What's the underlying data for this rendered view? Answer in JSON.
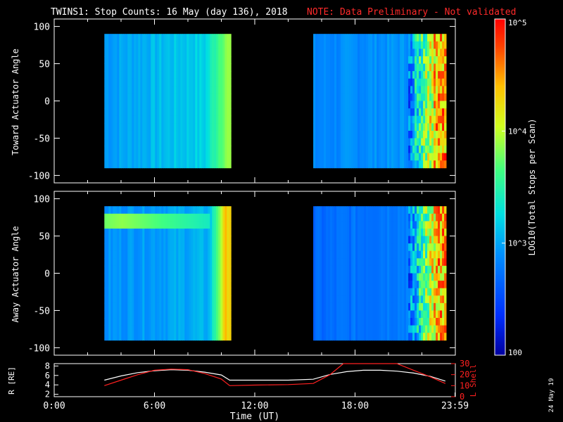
{
  "title": {
    "main": "TWINS1: Stop Counts: 16 May (day 136), 2018",
    "note": "NOTE: Data Preliminary - Not validated",
    "main_color": "#ffffff",
    "note_color": "#ff2a2a"
  },
  "stamp": "24 May 19",
  "chart_data": [
    {
      "type": "heatmap",
      "ylabel": "Toward Actuator Angle",
      "ylim": [
        -110,
        110
      ],
      "yticks": [
        100,
        50,
        0,
        -50,
        -100
      ],
      "xlim": [
        0,
        24
      ],
      "data_extent_y": [
        -90,
        90
      ],
      "segments": [
        {
          "start": 3.0,
          "end": 10.5,
          "level_start": 0.32,
          "level_end": 0.42,
          "ramp_start": 9.0,
          "ramp_end": 10.5,
          "ramp_level": 0.62
        },
        {
          "start": 15.5,
          "end": 23.4,
          "level_start": 0.28,
          "level_end": 0.32,
          "ramp_start": 21.1,
          "ramp_end": 23.4,
          "ramp_level": 0.9,
          "noisy_from": 21.1
        }
      ]
    },
    {
      "type": "heatmap",
      "ylabel": "Away Actuator Angle",
      "ylim": [
        -110,
        110
      ],
      "yticks": [
        100,
        50,
        0,
        -50,
        -100
      ],
      "xlim": [
        0,
        24
      ],
      "data_extent_y": [
        -90,
        90
      ],
      "bright_band": {
        "y": 72,
        "level": 0.62
      },
      "segments": [
        {
          "start": 3.0,
          "end": 10.5,
          "level_start": 0.3,
          "level_end": 0.36,
          "ramp_start": 9.2,
          "ramp_end": 10.5,
          "ramp_level": 0.78
        },
        {
          "start": 15.5,
          "end": 23.4,
          "level_start": 0.22,
          "level_end": 0.3,
          "ramp_start": 21.1,
          "ramp_end": 23.4,
          "ramp_level": 0.88,
          "noisy_from": 21.1
        }
      ]
    },
    {
      "type": "line",
      "xlabel": "Time (UT)",
      "xticks": [
        "0:00",
        "6:00",
        "12:00",
        "18:00",
        "23:59"
      ],
      "xtick_hours": [
        0,
        6,
        12,
        18,
        23.98
      ],
      "xlim": [
        0,
        24
      ],
      "left_axis": {
        "label": "R [RE]",
        "ylim": [
          1.5,
          8.5
        ],
        "yticks": [
          2,
          4,
          6,
          8
        ],
        "color": "#ffffff"
      },
      "right_axis": {
        "label": "L Shell",
        "ylim": [
          0,
          30
        ],
        "yticks": [
          0,
          10,
          20,
          30
        ],
        "color": "#ff2020"
      },
      "series": [
        {
          "axis": "left",
          "color": "#ffffff",
          "x": [
            3.0,
            4.0,
            5.0,
            6.0,
            7.0,
            8.0,
            9.0,
            10.0,
            10.5,
            12.0,
            14.0,
            15.5,
            16.5,
            17.5,
            18.5,
            19.5,
            20.5,
            21.5,
            22.5,
            23.4
          ],
          "y": [
            5.0,
            5.9,
            6.6,
            7.0,
            7.2,
            7.1,
            6.7,
            6.1,
            5.0,
            5.0,
            5.0,
            5.2,
            6.2,
            6.8,
            7.1,
            7.1,
            6.9,
            6.5,
            5.8,
            4.8
          ]
        },
        {
          "axis": "right",
          "color": "#ff2020",
          "x": [
            3.0,
            4.0,
            5.0,
            6.0,
            7.0,
            8.0,
            9.0,
            10.0,
            10.5,
            12.0,
            14.0,
            15.5,
            16.5,
            17.3,
            20.5,
            21.5,
            22.5,
            23.4
          ],
          "y": [
            10.0,
            15.0,
            20.0,
            24.0,
            25.0,
            24.5,
            21.0,
            16.0,
            10.0,
            10.5,
            11.0,
            12.0,
            20.0,
            30.0,
            30.0,
            24.0,
            18.0,
            12.0
          ]
        }
      ]
    }
  ],
  "colorbar": {
    "label": "LOG10(Total Stops per Scan)",
    "ticks": [
      "10^5",
      "10^4",
      "10^3",
      "100"
    ],
    "tick_values": [
      100000,
      10000,
      1000,
      100
    ],
    "log_range": [
      2,
      5
    ]
  }
}
